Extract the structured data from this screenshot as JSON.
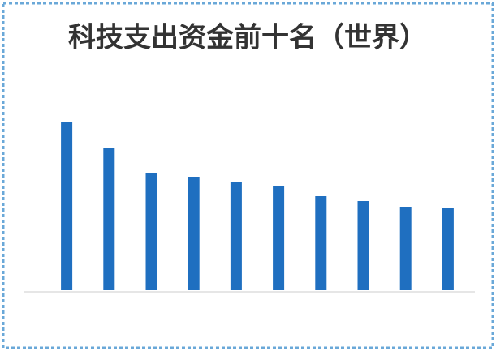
{
  "chart_data": {
    "type": "bar",
    "title": "科技支出资金前十名（世界）",
    "categories": [
      null,
      null,
      null,
      null,
      null,
      null,
      null,
      null,
      null,
      null
    ],
    "values": [
      208,
      176,
      145,
      140,
      134,
      128,
      116,
      110,
      103,
      101
    ],
    "color": "#1f6fc0"
  }
}
